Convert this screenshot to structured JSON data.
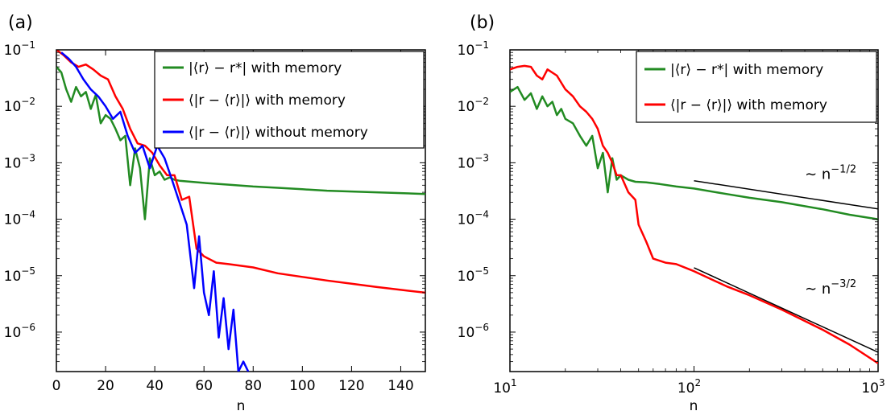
{
  "chart_data": [
    {
      "panel_label": "(a)",
      "type": "line",
      "xlabel": "n",
      "xscale": "linear",
      "yscale": "log",
      "xlim": [
        0,
        150
      ],
      "ylim": [
        2e-07,
        0.1
      ],
      "xticks": [
        0,
        20,
        40,
        60,
        80,
        100,
        120,
        140
      ],
      "xtick_labels": [
        "0",
        "20",
        "40",
        "60",
        "80",
        "100",
        "120",
        "140"
      ],
      "yticks": [
        0.1,
        0.01,
        0.001,
        0.0001,
        1e-05,
        1e-06
      ],
      "ytick_labels": [
        {
          "base": "10",
          "exp": "−1"
        },
        {
          "base": "10",
          "exp": "−2"
        },
        {
          "base": "10",
          "exp": "−3"
        },
        {
          "base": "10",
          "exp": "−4"
        },
        {
          "base": "10",
          "exp": "−5"
        },
        {
          "base": "10",
          "exp": "−6"
        }
      ],
      "legend_position": "top-right",
      "series": [
        {
          "name": "|⟨r⟩ − r*|  with memory",
          "color": "#228B22",
          "x": [
            0,
            2,
            4,
            6,
            8,
            10,
            12,
            14,
            16,
            18,
            20,
            22,
            24,
            26,
            28,
            30,
            32,
            34,
            36,
            38,
            40,
            42,
            44,
            46,
            48,
            50,
            60,
            70,
            80,
            90,
            100,
            110,
            120,
            130,
            140,
            150
          ],
          "y": [
            0.05,
            0.04,
            0.02,
            0.012,
            0.022,
            0.015,
            0.018,
            0.009,
            0.016,
            0.005,
            0.007,
            0.006,
            0.004,
            0.0025,
            0.003,
            0.0004,
            0.0018,
            0.0008,
            0.0001,
            0.0012,
            0.0006,
            0.0007,
            0.0005,
            0.00055,
            0.0005,
            0.00048,
            0.00044,
            0.00041,
            0.00038,
            0.00036,
            0.00034,
            0.00032,
            0.00031,
            0.0003,
            0.00029,
            0.00028
          ]
        },
        {
          "name": "⟨|r − ⟨r⟩|⟩ with memory",
          "color": "#FF0000",
          "x": [
            0,
            3,
            6,
            9,
            12,
            15,
            18,
            21,
            24,
            27,
            30,
            33,
            36,
            39,
            42,
            45,
            48,
            51,
            54,
            57,
            60,
            65,
            70,
            80,
            90,
            100,
            110,
            120,
            130,
            140,
            150
          ],
          "y": [
            0.1,
            0.08,
            0.06,
            0.05,
            0.055,
            0.045,
            0.035,
            0.03,
            0.015,
            0.009,
            0.004,
            0.0022,
            0.002,
            0.0015,
            0.0009,
            0.0006,
            0.0006,
            0.00022,
            0.00025,
            3e-05,
            2.2e-05,
            1.7e-05,
            1.6e-05,
            1.4e-05,
            1.1e-05,
            9.5e-06,
            8.2e-06,
            7.2e-06,
            6.3e-06,
            5.6e-06,
            5e-06
          ]
        },
        {
          "name": "⟨|r − ⟨r⟩|⟩ without memory",
          "color": "#0000FF",
          "x": [
            2,
            5,
            8,
            11,
            14,
            17,
            20,
            23,
            26,
            29,
            32,
            35,
            38,
            41,
            44,
            47,
            50,
            53,
            56,
            58,
            60,
            62,
            64,
            66,
            68,
            70,
            72,
            74,
            76,
            78
          ],
          "y": [
            0.09,
            0.07,
            0.05,
            0.03,
            0.02,
            0.015,
            0.01,
            0.006,
            0.008,
            0.003,
            0.0015,
            0.002,
            0.0008,
            0.002,
            0.0012,
            0.0005,
            0.0002,
            8e-05,
            6e-06,
            5e-05,
            5e-06,
            2e-06,
            1.2e-05,
            8e-07,
            4e-06,
            5e-07,
            2.5e-06,
            2e-07,
            3e-07,
            2e-07
          ]
        }
      ]
    },
    {
      "panel_label": "(b)",
      "type": "line",
      "xlabel": "n",
      "xscale": "log",
      "yscale": "log",
      "xlim": [
        10,
        1000
      ],
      "ylim": [
        2e-07,
        0.1
      ],
      "xticks": [
        10,
        100,
        1000
      ],
      "xtick_labels": [
        {
          "base": "10",
          "exp": "1"
        },
        {
          "base": "10",
          "exp": "2"
        },
        {
          "base": "10",
          "exp": "3"
        }
      ],
      "yticks": [
        0.1,
        0.01,
        0.001,
        0.0001,
        1e-05,
        1e-06
      ],
      "ytick_labels": [
        {
          "base": "10",
          "exp": "−1"
        },
        {
          "base": "10",
          "exp": "−2"
        },
        {
          "base": "10",
          "exp": "−3"
        },
        {
          "base": "10",
          "exp": "−4"
        },
        {
          "base": "10",
          "exp": "−5"
        },
        {
          "base": "10",
          "exp": "−6"
        }
      ],
      "legend_position": "top-right",
      "series": [
        {
          "name": "|⟨r⟩ − r*|  with memory",
          "color": "#228B22",
          "x": [
            10,
            11,
            12,
            13,
            14,
            15,
            16,
            17,
            18,
            19,
            20,
            22,
            24,
            26,
            28,
            30,
            32,
            34,
            36,
            38,
            40,
            44,
            48,
            55,
            65,
            80,
            100,
            150,
            200,
            300,
            500,
            700,
            1000
          ],
          "y": [
            0.018,
            0.022,
            0.013,
            0.017,
            0.009,
            0.015,
            0.01,
            0.012,
            0.007,
            0.009,
            0.006,
            0.005,
            0.003,
            0.002,
            0.003,
            0.0008,
            0.0015,
            0.0003,
            0.0012,
            0.0005,
            0.0006,
            0.0005,
            0.00046,
            0.00045,
            0.00042,
            0.00038,
            0.00035,
            0.00028,
            0.00024,
            0.0002,
            0.00015,
            0.00012,
            0.0001
          ]
        },
        {
          "name": "⟨|r − ⟨r⟩|⟩ with memory",
          "color": "#FF0000",
          "x": [
            10,
            11,
            12,
            13,
            14,
            15,
            16,
            18,
            20,
            22,
            24,
            26,
            28,
            30,
            32,
            34,
            36,
            38,
            40,
            44,
            48,
            50,
            55,
            60,
            70,
            80,
            100,
            150,
            200,
            300,
            500,
            700,
            1000
          ],
          "y": [
            0.045,
            0.05,
            0.052,
            0.05,
            0.035,
            0.03,
            0.045,
            0.035,
            0.02,
            0.015,
            0.01,
            0.008,
            0.006,
            0.004,
            0.002,
            0.0015,
            0.001,
            0.0006,
            0.0006,
            0.0003,
            0.00022,
            8e-05,
            4e-05,
            2e-05,
            1.7e-05,
            1.6e-05,
            1.2e-05,
            6.5e-06,
            4.5e-06,
            2.5e-06,
            1.1e-06,
            6e-07,
            2.8e-07
          ]
        },
        {
          "name": "",
          "color": "#000000",
          "x": [
            100,
            1000
          ],
          "y": [
            0.00048,
            0.000152
          ]
        },
        {
          "name": "",
          "color": "#000000",
          "x": [
            100,
            1000
          ],
          "y": [
            1.38e-05,
            4.4e-07
          ]
        }
      ],
      "annotations": [
        {
          "text_prefix": "∼ n",
          "text_exp": "−1/2",
          "x": 400,
          "y": 0.00052
        },
        {
          "text_prefix": "∼ n",
          "text_exp": "−3/2",
          "x": 400,
          "y": 4.8e-06
        }
      ]
    }
  ]
}
